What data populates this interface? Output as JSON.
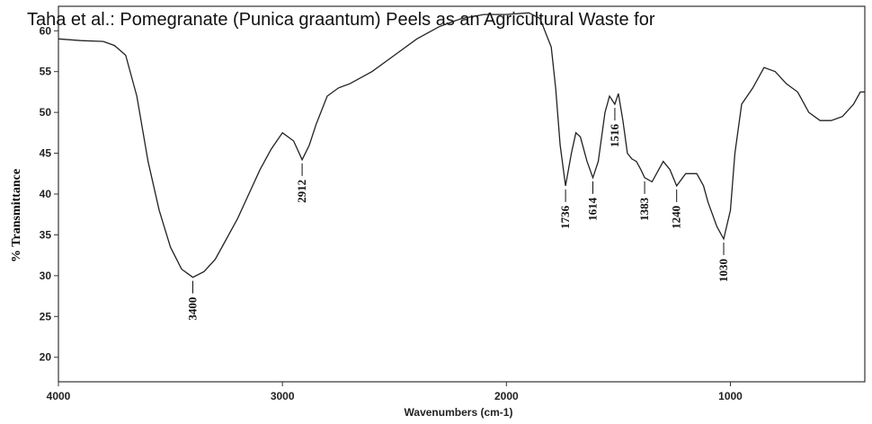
{
  "header": {
    "title": "Taha et al.: Pomegranate (Punica graantum) Peels as an Agricultural Waste for"
  },
  "chart_data": {
    "type": "line",
    "x_label": "Wavenumbers (cm-1)",
    "y_label": "% Transmittance",
    "xlim": [
      4000,
      400
    ],
    "xticks": [
      4000,
      3000,
      2000,
      1000
    ],
    "ylim": [
      17,
      63
    ],
    "yticks": [
      20,
      25,
      30,
      35,
      40,
      45,
      50,
      55,
      60
    ],
    "color": "#222222",
    "x": [
      4000,
      3900,
      3800,
      3750,
      3700,
      3650,
      3600,
      3550,
      3500,
      3450,
      3400,
      3350,
      3300,
      3250,
      3200,
      3150,
      3100,
      3050,
      3000,
      2950,
      2912,
      2880,
      2850,
      2800,
      2750,
      2700,
      2600,
      2500,
      2400,
      2300,
      2200,
      2100,
      2000,
      1900,
      1850,
      1800,
      1780,
      1760,
      1736,
      1710,
      1690,
      1670,
      1640,
      1614,
      1590,
      1560,
      1540,
      1516,
      1500,
      1480,
      1460,
      1440,
      1420,
      1400,
      1383,
      1350,
      1300,
      1270,
      1240,
      1200,
      1150,
      1120,
      1100,
      1060,
      1030,
      1000,
      980,
      950,
      900,
      850,
      800,
      750,
      700,
      650,
      600,
      550,
      500,
      450,
      420,
      400
    ],
    "values": [
      59,
      58.8,
      58.7,
      58.2,
      57,
      52,
      44,
      38,
      33.5,
      30.8,
      29.8,
      30.5,
      32,
      34.5,
      37,
      40,
      43,
      45.5,
      47.5,
      46.5,
      44.2,
      46,
      48.5,
      52,
      53,
      53.5,
      55,
      57,
      59,
      60.5,
      61.5,
      62,
      62,
      62.2,
      61.5,
      58,
      53,
      46,
      41,
      45,
      47.5,
      47,
      44,
      42,
      44,
      50,
      52,
      51,
      52.3,
      49,
      45,
      44.3,
      44,
      43,
      42,
      41.5,
      44,
      43,
      41,
      42.5,
      42.5,
      41,
      39,
      36,
      34.5,
      38,
      45,
      51,
      53,
      55.5,
      55,
      53.5,
      52.5,
      50,
      49,
      49,
      49.5,
      51,
      52.5,
      52.5
    ],
    "peak_labels": [
      3400,
      2912,
      1736,
      1614,
      1516,
      1383,
      1240,
      1030
    ]
  }
}
